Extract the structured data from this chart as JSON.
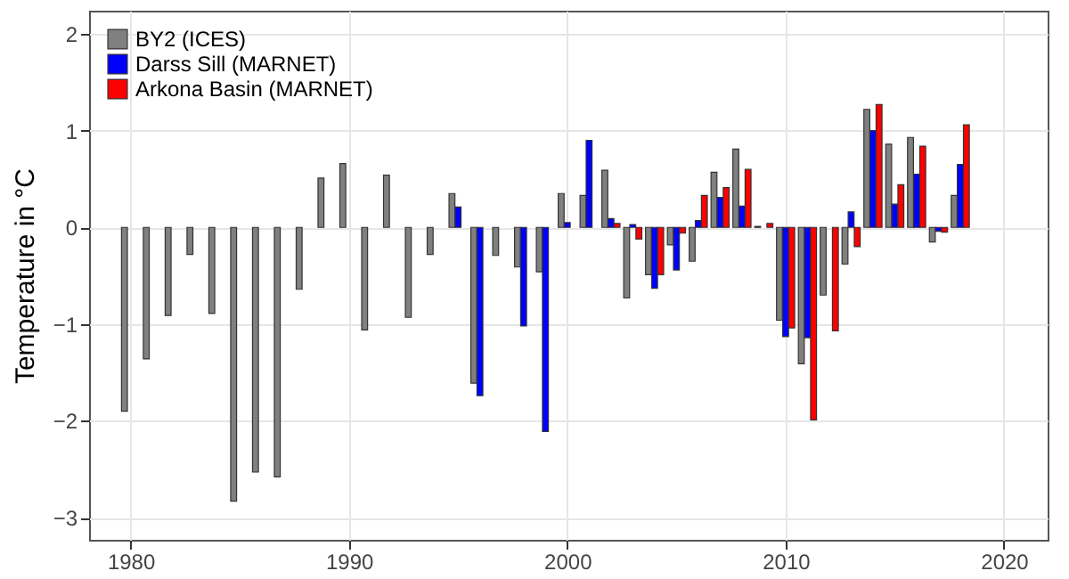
{
  "chart_data": {
    "type": "bar",
    "ylabel": "Temperature in °C",
    "x": [
      1980,
      1981,
      1982,
      1983,
      1984,
      1985,
      1986,
      1987,
      1988,
      1989,
      1990,
      1991,
      1992,
      1993,
      1994,
      1995,
      1996,
      1997,
      1998,
      1999,
      2000,
      2001,
      2002,
      2003,
      2004,
      2005,
      2006,
      2007,
      2008,
      2009,
      2010,
      2011,
      2012,
      2013,
      2014,
      2015,
      2016,
      2017,
      2018
    ],
    "series": [
      {
        "name": "BY2 (ICES)",
        "color": "#808080",
        "values": [
          -1.9,
          -1.36,
          -0.91,
          -0.28,
          -0.89,
          -2.83,
          -2.53,
          -2.58,
          -0.64,
          0.51,
          0.66,
          -1.06,
          0.54,
          -0.93,
          -0.28,
          0.35,
          -1.61,
          -0.29,
          -0.41,
          -0.46,
          0.35,
          0.33,
          0.59,
          -0.73,
          -0.49,
          -0.18,
          -0.35,
          0.57,
          0.81,
          0.01,
          -0.96,
          -1.41,
          -0.7,
          -0.38,
          1.22,
          0.86,
          0.93,
          -0.15,
          0.33
        ]
      },
      {
        "name": "Darss Sill (MARNET)",
        "color": "#0000ff",
        "values": [
          null,
          null,
          null,
          null,
          null,
          null,
          null,
          null,
          null,
          null,
          null,
          null,
          null,
          null,
          null,
          0.21,
          -1.74,
          null,
          -1.02,
          -2.11,
          0.05,
          0.9,
          0.09,
          0.03,
          -0.63,
          -0.44,
          0.07,
          0.31,
          0.22,
          null,
          -1.13,
          -1.14,
          null,
          0.16,
          1.0,
          0.24,
          0.55,
          -0.04,
          0.65
        ]
      },
      {
        "name": "Arkona Basin (MARNET)",
        "color": "#ff0000",
        "values": [
          null,
          null,
          null,
          null,
          null,
          null,
          null,
          null,
          null,
          null,
          null,
          null,
          null,
          null,
          null,
          null,
          null,
          null,
          null,
          null,
          null,
          null,
          0.04,
          -0.12,
          -0.49,
          -0.06,
          0.33,
          0.41,
          0.6,
          0.04,
          -1.04,
          -1.99,
          -1.07,
          -0.2,
          1.27,
          0.44,
          0.84,
          -0.05,
          1.06
        ]
      }
    ],
    "xlim": [
      1978.1,
      2022
    ],
    "xticks": [
      1980,
      1990,
      2000,
      2010,
      2020
    ],
    "ylim": [
      -3.23,
      2.24
    ],
    "yticks": [
      -3,
      -2,
      -1,
      0,
      1,
      2
    ],
    "grid": true,
    "legend": "top left"
  }
}
